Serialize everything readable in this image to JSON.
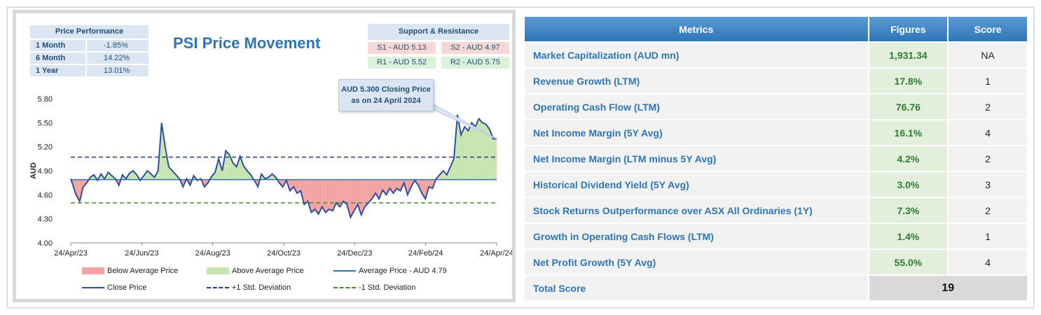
{
  "chart_data": {
    "type": "line",
    "title": "PSI Price Movement",
    "ylabel": "AUD",
    "xlabel": "",
    "ylim": [
      4.0,
      5.8
    ],
    "yticks": [
      "5.80",
      "5.50",
      "5.20",
      "4.90",
      "4.60",
      "4.30",
      "4.00"
    ],
    "xticks": [
      "24/Apr/23",
      "24/Jun/23",
      "24/Aug/23",
      "24/Oct/23",
      "24/Dec/23",
      "24/Feb/24",
      "24/Apr/24"
    ],
    "average": 4.79,
    "plus_std": 5.07,
    "minus_std": 4.5,
    "close_series": [
      [
        0,
        4.8
      ],
      [
        3,
        4.6
      ],
      [
        5,
        4.52
      ],
      [
        7,
        4.7
      ],
      [
        9,
        4.75
      ],
      [
        11,
        4.82
      ],
      [
        13,
        4.85
      ],
      [
        15,
        4.78
      ],
      [
        17,
        4.86
      ],
      [
        19,
        4.8
      ],
      [
        21,
        4.88
      ],
      [
        23,
        4.84
      ],
      [
        25,
        4.8
      ],
      [
        27,
        4.72
      ],
      [
        29,
        4.85
      ],
      [
        31,
        4.8
      ],
      [
        33,
        4.87
      ],
      [
        35,
        4.9
      ],
      [
        37,
        4.85
      ],
      [
        39,
        4.78
      ],
      [
        41,
        4.84
      ],
      [
        43,
        4.9
      ],
      [
        45,
        4.86
      ],
      [
        47,
        4.82
      ],
      [
        49,
        4.9
      ],
      [
        51,
        5.5
      ],
      [
        53,
        5.2
      ],
      [
        55,
        4.95
      ],
      [
        57,
        4.9
      ],
      [
        59,
        4.85
      ],
      [
        61,
        4.8
      ],
      [
        63,
        4.7
      ],
      [
        65,
        4.8
      ],
      [
        67,
        4.72
      ],
      [
        69,
        4.84
      ],
      [
        71,
        4.78
      ],
      [
        73,
        4.8
      ],
      [
        75,
        4.7
      ],
      [
        77,
        4.75
      ],
      [
        79,
        4.83
      ],
      [
        81,
        4.88
      ],
      [
        83,
        5.05
      ],
      [
        85,
        4.9
      ],
      [
        87,
        5.15
      ],
      [
        89,
        5.1
      ],
      [
        91,
        5.0
      ],
      [
        93,
        4.95
      ],
      [
        95,
        5.08
      ],
      [
        97,
        4.96
      ],
      [
        99,
        4.9
      ],
      [
        101,
        4.85
      ],
      [
        103,
        4.78
      ],
      [
        105,
        4.7
      ],
      [
        107,
        4.86
      ],
      [
        109,
        4.8
      ],
      [
        111,
        4.82
      ],
      [
        113,
        4.86
      ],
      [
        115,
        4.82
      ],
      [
        117,
        4.75
      ],
      [
        119,
        4.7
      ],
      [
        121,
        4.78
      ],
      [
        123,
        4.65
      ],
      [
        125,
        4.7
      ],
      [
        127,
        4.62
      ],
      [
        129,
        4.65
      ],
      [
        131,
        4.48
      ],
      [
        133,
        4.52
      ],
      [
        135,
        4.38
      ],
      [
        137,
        4.42
      ],
      [
        139,
        4.36
      ],
      [
        141,
        4.45
      ],
      [
        143,
        4.38
      ],
      [
        145,
        4.42
      ],
      [
        147,
        4.4
      ],
      [
        149,
        4.5
      ],
      [
        151,
        4.45
      ],
      [
        153,
        4.52
      ],
      [
        155,
        4.48
      ],
      [
        157,
        4.32
      ],
      [
        159,
        4.4
      ],
      [
        161,
        4.48
      ],
      [
        163,
        4.35
      ],
      [
        165,
        4.45
      ],
      [
        167,
        4.5
      ],
      [
        169,
        4.55
      ],
      [
        171,
        4.62
      ],
      [
        173,
        4.55
      ],
      [
        175,
        4.66
      ],
      [
        177,
        4.6
      ],
      [
        179,
        4.68
      ],
      [
        181,
        4.62
      ],
      [
        183,
        4.68
      ],
      [
        185,
        4.65
      ],
      [
        187,
        4.75
      ],
      [
        189,
        4.6
      ],
      [
        191,
        4.7
      ],
      [
        193,
        4.78
      ],
      [
        195,
        4.72
      ],
      [
        197,
        4.62
      ],
      [
        199,
        4.55
      ],
      [
        201,
        4.7
      ],
      [
        203,
        4.68
      ],
      [
        205,
        4.8
      ],
      [
        207,
        4.85
      ],
      [
        209,
        4.9
      ],
      [
        211,
        4.85
      ],
      [
        213,
        4.95
      ],
      [
        215,
        5.05
      ],
      [
        217,
        5.6
      ],
      [
        219,
        5.35
      ],
      [
        221,
        5.45
      ],
      [
        223,
        5.4
      ],
      [
        225,
        5.5
      ],
      [
        227,
        5.45
      ],
      [
        229,
        5.55
      ],
      [
        231,
        5.5
      ],
      [
        233,
        5.48
      ],
      [
        235,
        5.42
      ],
      [
        237,
        5.3
      ],
      [
        239,
        5.3
      ]
    ],
    "series": [
      {
        "name": "Below Average Price"
      },
      {
        "name": "Above Average Price"
      },
      {
        "name": "Average Price - AUD 4.79"
      },
      {
        "name": "Close Price"
      },
      {
        "name": "+1 Std. Deviation"
      },
      {
        "name": "-1 Std. Deviation"
      }
    ],
    "colors": {
      "below": "#f4a3a3",
      "above": "#c7e5b0",
      "line": "#2f4f9f",
      "avg": "#2e75b6",
      "plus": "#1f3d7a",
      "minus": "#4a8a2a"
    },
    "annotation": "AUD 5.300 Closing Price as on 24 April 2024"
  },
  "price_performance": {
    "header": "Price Performance",
    "rows": [
      {
        "label": "1 Month",
        "value": "-1.85%"
      },
      {
        "label": "6 Month",
        "value": "14.22%"
      },
      {
        "label": "1 Year",
        "value": "13.01%"
      }
    ]
  },
  "support_resistance": {
    "header": "Support & Resistance",
    "s1": "S1 - AUD 5.13",
    "s2": "S2 - AUD 4.97",
    "r1": "R1 - AUD 5.52",
    "r2": "R2 - AUD 5.75"
  },
  "metrics": {
    "headers": [
      "Metrics",
      "Figures",
      "Score"
    ],
    "rows": [
      {
        "label": "Market Capitalization (AUD mn)",
        "figure": "1,931.34",
        "score": "NA"
      },
      {
        "label": "Revenue Growth (LTM)",
        "figure": "17.8%",
        "score": "1"
      },
      {
        "label": "Operating Cash Flow (LTM)",
        "figure": "76.76",
        "score": "2"
      },
      {
        "label": "Net Income Margin (5Y Avg)",
        "figure": "16.1%",
        "score": "4"
      },
      {
        "label": "Net Income Margin (LTM minus 5Y Avg)",
        "figure": "4.2%",
        "score": "2"
      },
      {
        "label": "Historical Dividend Yield (5Y Avg)",
        "figure": "3.0%",
        "score": "3"
      },
      {
        "label": "Stock Returns Outperformance over ASX All Ordinaries (1Y)",
        "figure": "7.3%",
        "score": "2"
      },
      {
        "label": "Growth in Operating Cash Flows (LTM)",
        "figure": "1.4%",
        "score": "1"
      },
      {
        "label": "Net Profit Growth (5Y Avg)",
        "figure": "55.0%",
        "score": "4"
      }
    ],
    "total_label": "Total Score",
    "total_value": "19"
  }
}
